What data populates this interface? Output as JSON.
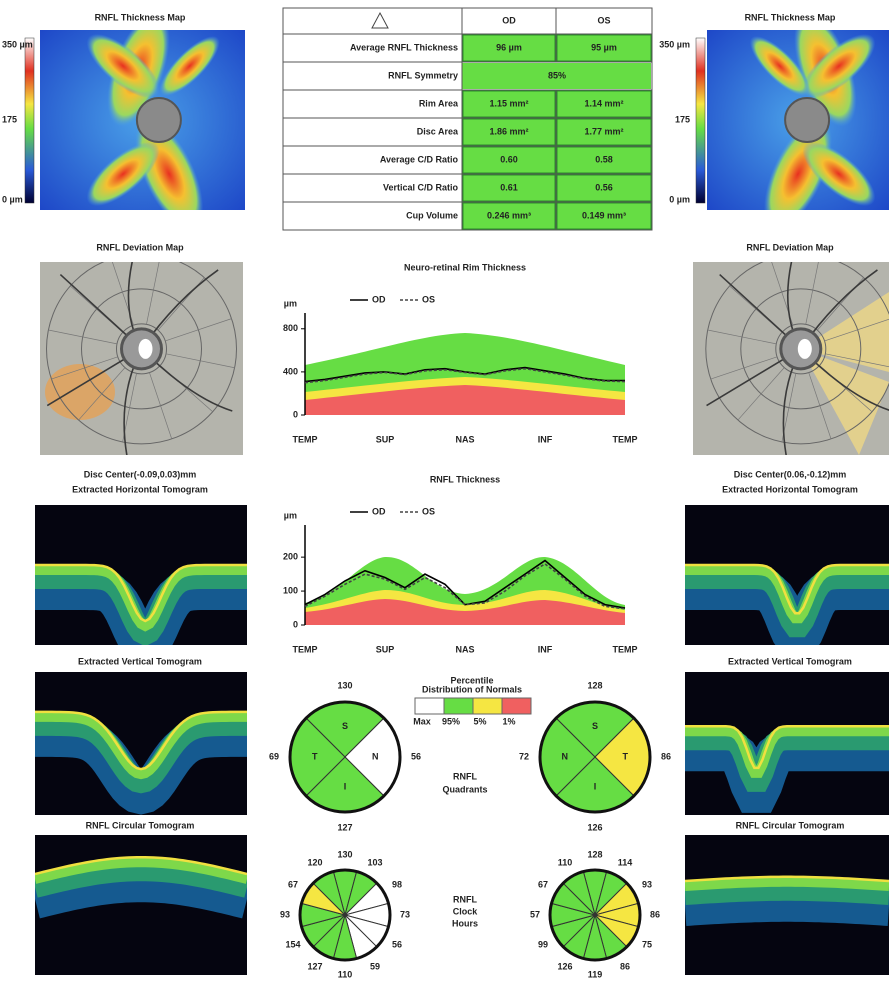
{
  "left_panel": {
    "thickness_map_title": "RNFL Thickness Map",
    "scale_labels": [
      "350 µm",
      "175",
      "0 µm"
    ],
    "deviation_map_title": "RNFL Deviation Map",
    "horizontal_tomogram_title": [
      "Disc Center(-0.09,0.03)mm",
      "Extracted Horizontal Tomogram"
    ],
    "vertical_tomogram_title": "Extracted Vertical Tomogram",
    "circular_tomogram_title": "RNFL Circular Tomogram"
  },
  "right_panel": {
    "thickness_map_title": "RNFL Thickness Map",
    "scale_labels": [
      "350 µm",
      "175",
      "0 µm"
    ],
    "deviation_map_title": "RNFL Deviation Map",
    "horizontal_tomogram_title": [
      "Disc Center(0.06,-0.12)mm",
      "Extracted Horizontal Tomogram"
    ],
    "vertical_tomogram_title": "Extracted Vertical Tomogram",
    "circular_tomogram_title": "RNFL Circular Tomogram"
  },
  "table": {
    "header": [
      "OD",
      "OS"
    ],
    "rows": [
      [
        "Average RNFL Thickness",
        "96 µm",
        "95 µm"
      ],
      [
        "RNFL Symmetry",
        "85%"
      ],
      [
        "Rim Area",
        "1.15 mm²",
        "1.14 mm²"
      ],
      [
        "Disc Area",
        "1.86 mm²",
        "1.77 mm²"
      ],
      [
        "Average C/D Ratio",
        "0.60",
        "0.58"
      ],
      [
        "Vertical C/D Ratio",
        "0.61",
        "0.56"
      ],
      [
        "Cup Volume",
        "0.246 mm³",
        "0.149 mm³"
      ]
    ]
  },
  "rim_chart": {
    "type": "line",
    "title": "Neuro-retinal Rim Thickness",
    "y_label": "µm",
    "ylim": [
      0,
      900
    ],
    "yticks": [
      0,
      400,
      800
    ],
    "x_labels": [
      "TEMP",
      "SUP",
      "NAS",
      "INF",
      "TEMP"
    ],
    "series": [
      {
        "name": "OD",
        "color": "#000000",
        "dashed": false,
        "values": [
          310,
          330,
          360,
          390,
          400,
          380,
          420,
          430,
          400,
          380,
          420,
          440,
          410,
          380,
          340,
          320,
          320
        ]
      },
      {
        "name": "OS",
        "color": "#444444",
        "dashed": true,
        "values": [
          300,
          320,
          350,
          380,
          395,
          375,
          410,
          420,
          395,
          375,
          410,
          430,
          400,
          370,
          335,
          315,
          310
        ]
      }
    ]
  },
  "rnfl_chart": {
    "type": "line",
    "title": "RNFL Thickness",
    "y_label": "µm",
    "ylim": [
      0,
      280
    ],
    "yticks": [
      0,
      100,
      200
    ],
    "x_labels": [
      "TEMP",
      "SUP",
      "NAS",
      "INF",
      "TEMP"
    ],
    "series": [
      {
        "name": "OD",
        "color": "#000000",
        "dashed": false,
        "values": [
          60,
          90,
          130,
          160,
          140,
          110,
          150,
          120,
          60,
          70,
          110,
          150,
          190,
          140,
          90,
          60,
          50
        ]
      },
      {
        "name": "OS",
        "color": "#444444",
        "dashed": true,
        "values": [
          55,
          85,
          120,
          150,
          135,
          105,
          140,
          110,
          60,
          65,
          100,
          145,
          180,
          135,
          85,
          55,
          48
        ]
      }
    ]
  },
  "normals_legend": {
    "title": [
      "Percentile",
      "Distribution of Normals"
    ],
    "labels": [
      "Max",
      "95%",
      "5%",
      "1%"
    ],
    "colors": [
      "#ffffff",
      "#66dd44",
      "#f5e642",
      "#f06060"
    ]
  },
  "quadrants": {
    "title": [
      "RNFL",
      "Quadrants"
    ],
    "od": {
      "values": [
        130,
        56,
        127,
        69
      ],
      "sector_labels": [
        "S",
        "N",
        "I",
        "T"
      ],
      "colors": [
        "#66dd44",
        "#ffffff",
        "#66dd44",
        "#66dd44"
      ]
    },
    "os": {
      "values": [
        128,
        86,
        126,
        72
      ],
      "sector_labels": [
        "S",
        "T",
        "I",
        "N"
      ],
      "colors": [
        "#66dd44",
        "#f5e642",
        "#66dd44",
        "#66dd44"
      ]
    }
  },
  "clock_hours": {
    "title": [
      "RNFL",
      "Clock",
      "Hours"
    ],
    "od": {
      "values": [
        130,
        103,
        98,
        73,
        56,
        59,
        110,
        127,
        154,
        93,
        67,
        120
      ],
      "colors": [
        "#66dd44",
        "#66dd44",
        "#ffffff",
        "#ffffff",
        "#ffffff",
        "#ffffff",
        "#66dd44",
        "#66dd44",
        "#66dd44",
        "#66dd44",
        "#f5e642",
        "#66dd44"
      ]
    },
    "os": {
      "values": [
        128,
        114,
        93,
        86,
        75,
        86,
        119,
        126,
        99,
        57,
        67,
        110
      ],
      "colors": [
        "#66dd44",
        "#66dd44",
        "#f5e642",
        "#f5e642",
        "#f5e642",
        "#66dd44",
        "#66dd44",
        "#66dd44",
        "#66dd44",
        "#66dd44",
        "#66dd44",
        "#66dd44"
      ]
    }
  }
}
